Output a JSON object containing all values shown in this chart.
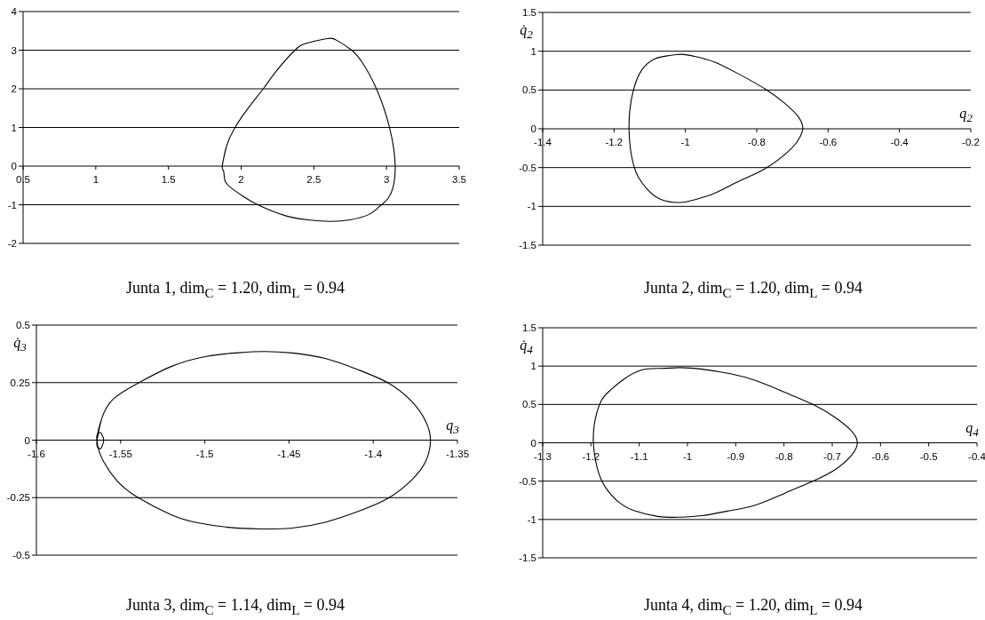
{
  "chart_data": [
    {
      "type": "line",
      "title": "Junta 1, dim$_{C}$ = 1.20, dim$_{L}$ = 0.94",
      "xlim": [
        0.5,
        3.5
      ],
      "xticks": [
        0.5,
        1,
        1.5,
        2,
        2.5,
        3,
        3.5
      ],
      "ylim": [
        -2,
        4
      ],
      "yticks": [
        -2,
        -1,
        0,
        1,
        2,
        3,
        4
      ],
      "grid": "y",
      "marker": "none",
      "line_style": "solid",
      "series": [
        {
          "color": "#000000",
          "x": [
            1.87,
            1.9,
            1.96,
            2.05,
            2.16,
            2.24,
            2.37,
            2.46,
            2.59,
            2.66,
            2.75,
            2.83,
            2.94,
            3.02,
            3.05,
            3.06,
            3.05,
            3.01,
            2.95,
            2.88,
            2.75,
            2.61,
            2.46,
            2.31,
            2.13,
            2.02,
            1.94,
            1.89,
            1.88,
            1.87,
            1.9
          ],
          "values": [
            0,
            0.52,
            1.01,
            1.51,
            2.04,
            2.45,
            3.0,
            3.19,
            3.3,
            3.25,
            3.03,
            2.7,
            1.92,
            1.01,
            0.44,
            0,
            -0.47,
            -0.84,
            -1.05,
            -1.25,
            -1.39,
            -1.43,
            -1.39,
            -1.29,
            -1.03,
            -0.8,
            -0.59,
            -0.39,
            -0.14,
            0,
            0.52
          ]
        }
      ]
    },
    {
      "type": "line",
      "title": "Junta 2, dim$_{C}$ = 1.20, dim$_{L}$ = 0.94",
      "xlabel": "q$_{2}$",
      "ylabel": "q̇$_{2}$",
      "xlim": [
        -1.4,
        -0.2
      ],
      "xticks": [
        -1.4,
        -1.2,
        -1,
        -0.8,
        -0.6,
        -0.4,
        -0.2
      ],
      "ylim": [
        -1.5,
        1.5
      ],
      "yticks": [
        -1.5,
        -1,
        -0.5,
        0,
        0.5,
        1,
        1.5
      ],
      "grid": "y",
      "marker": "none",
      "line_style": "solid",
      "series": [
        {
          "color": "#000000",
          "x": [
            -1.158,
            -1.156,
            -1.145,
            -1.122,
            -1.087,
            -1.051,
            -1.011,
            -0.971,
            -0.918,
            -0.856,
            -0.775,
            -0.722,
            -0.686,
            -0.671,
            -0.678,
            -0.704,
            -0.775,
            -0.847,
            -0.918,
            -0.971,
            -1.016,
            -1.069,
            -1.105,
            -1.131,
            -1.145,
            -1.154,
            -1.158,
            -1.156
          ],
          "values": [
            0,
            0.23,
            0.51,
            0.76,
            0.9,
            0.94,
            0.96,
            0.93,
            0.86,
            0.72,
            0.51,
            0.33,
            0.17,
            0.02,
            -0.1,
            -0.26,
            -0.51,
            -0.67,
            -0.83,
            -0.91,
            -0.95,
            -0.91,
            -0.79,
            -0.63,
            -0.47,
            -0.26,
            0,
            0.23
          ]
        }
      ]
    },
    {
      "type": "line",
      "title": "Junta 3, dim$_{C}$ = 1.14, dim$_{L}$ = 0.94",
      "xlabel": "q$_{3}$",
      "ylabel": "q̇$_{3}$",
      "xlim": [
        -1.6,
        -1.35
      ],
      "xticks": [
        -1.6,
        -1.55,
        -1.5,
        -1.45,
        -1.4,
        -1.35
      ],
      "ylim": [
        -0.5,
        0.5
      ],
      "yticks": [
        -0.5,
        -0.25,
        0,
        0.25,
        0.5
      ],
      "grid": "y",
      "marker": "none",
      "line_style": "solid",
      "series": [
        {
          "color": "#000000",
          "x": [
            -1.564,
            -1.561,
            -1.554,
            -1.539,
            -1.52,
            -1.499,
            -1.48,
            -1.465,
            -1.448,
            -1.428,
            -1.409,
            -1.391,
            -1.377,
            -1.369,
            -1.366,
            -1.369,
            -1.377,
            -1.391,
            -1.409,
            -1.428,
            -1.448,
            -1.467,
            -1.486,
            -1.505,
            -1.52,
            -1.54,
            -1.552,
            -1.56,
            -1.564,
            -1.561
          ],
          "values": [
            0,
            0.098,
            0.181,
            0.25,
            0.32,
            0.364,
            0.38,
            0.385,
            0.379,
            0.354,
            0.306,
            0.248,
            0.167,
            0.084,
            0,
            -0.095,
            -0.172,
            -0.252,
            -0.31,
            -0.356,
            -0.382,
            -0.386,
            -0.379,
            -0.358,
            -0.324,
            -0.248,
            -0.178,
            -0.095,
            0,
            0.098
          ]
        },
        {
          "color": "#000000",
          "x": [
            -1.564,
            -1.564,
            -1.562,
            -1.561,
            -1.56,
            -1.561,
            -1.562,
            -1.564,
            -1.564,
            -1.564
          ],
          "values": [
            0,
            0.022,
            0.033,
            0.022,
            0,
            -0.026,
            -0.037,
            -0.026,
            0,
            0.022
          ]
        }
      ]
    },
    {
      "type": "line",
      "title": "Junta 4, dim$_{C}$ = 1.20, dim$_{L}$ = 0.94",
      "xlabel": "q$_{4}$",
      "ylabel": "q̇$_{4}$",
      "xlim": [
        -1.3,
        -0.4
      ],
      "xticks": [
        -1.3,
        -1.2,
        -1.1,
        -1,
        -0.9,
        -0.8,
        -0.7,
        -0.6,
        -0.5,
        -0.4
      ],
      "ylim": [
        -1.5,
        1.5
      ],
      "yticks": [
        -1.5,
        -1,
        -0.5,
        0,
        0.5,
        1,
        1.5
      ],
      "grid": "y",
      "marker": "none",
      "line_style": "solid",
      "series": [
        {
          "color": "#000000",
          "x": [
            -1.195,
            -1.193,
            -1.18,
            -1.161,
            -1.134,
            -1.095,
            -1.055,
            -1.016,
            -0.97,
            -0.911,
            -0.858,
            -0.799,
            -0.74,
            -0.694,
            -0.661,
            -0.648,
            -0.661,
            -0.694,
            -0.74,
            -0.799,
            -0.858,
            -0.917,
            -0.97,
            -1.016,
            -1.062,
            -1.108,
            -1.141,
            -1.17,
            -1.187,
            -1.195,
            -1.193
          ],
          "values": [
            0,
            0.24,
            0.53,
            0.68,
            0.82,
            0.95,
            0.97,
            0.98,
            0.96,
            0.9,
            0.81,
            0.66,
            0.5,
            0.33,
            0.16,
            0,
            -0.17,
            -0.35,
            -0.5,
            -0.66,
            -0.81,
            -0.89,
            -0.95,
            -0.97,
            -0.96,
            -0.89,
            -0.78,
            -0.58,
            -0.33,
            0,
            0.24
          ]
        }
      ]
    }
  ]
}
